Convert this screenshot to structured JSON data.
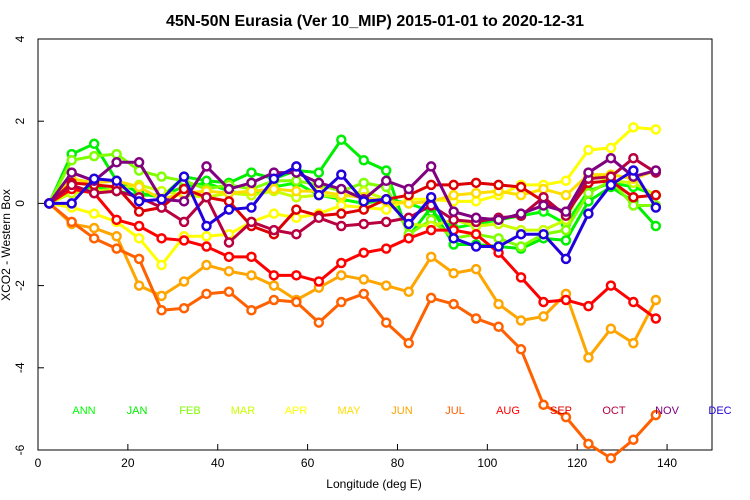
{
  "chart_data": {
    "type": "line",
    "title": "45N-50N Eurasia (Ver 10_MIP)   2015-01-01 to 2020-12-31",
    "xlabel": "Longitude (deg E)",
    "ylabel": "XCO2 - Western Box",
    "xlim": [
      0,
      150
    ],
    "ylim": [
      -6,
      4
    ],
    "xticks": [
      0,
      20,
      40,
      60,
      80,
      100,
      120,
      140
    ],
    "yticks": [
      -6,
      -4,
      -2,
      0,
      2,
      4
    ],
    "x": [
      2.5,
      7.5,
      12.5,
      17.5,
      22.5,
      27.5,
      32.5,
      37.5,
      42.5,
      47.5,
      52.5,
      57.5,
      62.5,
      67.5,
      72.5,
      77.5,
      82.5,
      87.5,
      92.5,
      97.5,
      102.5,
      107.5,
      112.5,
      117.5,
      122.5,
      127.5,
      132.5,
      137.5
    ],
    "series": [
      {
        "name": "ANN",
        "color": "#00ff00",
        "values": [
          0,
          0.3,
          0.4,
          0.3,
          0.2,
          0.2,
          0.4,
          0.5,
          0.3,
          0.2,
          0.4,
          0.5,
          0.2,
          0.1,
          0,
          0.1,
          0,
          -0.2,
          -0.6,
          -0.5,
          -0.4,
          -0.3,
          -0.2,
          -0.5,
          0.3,
          0.5,
          0.4,
          0.2
        ]
      },
      {
        "name": "JAN",
        "color": "#00ee00",
        "values": [
          0,
          1.2,
          1.45,
          0.55,
          0.25,
          0.15,
          0.65,
          0.55,
          0.5,
          0.75,
          0.6,
          0.8,
          0.75,
          1.55,
          1.05,
          0.8,
          -0.8,
          -0.1,
          -1,
          -1,
          -1.05,
          -1.1,
          -0.85,
          -0.9,
          0.05,
          0.4,
          0.05,
          -0.55
        ]
      },
      {
        "name": "FEB",
        "color": "#7fff00",
        "values": [
          0,
          1.05,
          1.15,
          1.2,
          0.8,
          0.65,
          0.55,
          0.35,
          0.45,
          0.35,
          0.55,
          0.55,
          0.45,
          0.3,
          0.5,
          0.4,
          -0.75,
          -0.4,
          -0.85,
          -0.75,
          -0.85,
          -1.05,
          -0.75,
          -0.65,
          0.25,
          0.55,
          -0.05,
          -0.05
        ]
      },
      {
        "name": "MAR",
        "color": "#c8ff00",
        "values": [
          0,
          0.25,
          0.3,
          0.35,
          0.45,
          0.3,
          0.2,
          0.15,
          0.25,
          0.2,
          0.3,
          0.15,
          0.2,
          0.15,
          0.3,
          0.1,
          -0.5,
          -0.55,
          -0.4,
          -0.55,
          -0.5,
          -0.65,
          -0.65,
          -0.4,
          0.7,
          0.55,
          0.5,
          0.2
        ]
      },
      {
        "name": "APR",
        "color": "#ffff00",
        "values": [
          0,
          -0.1,
          -0.25,
          -0.45,
          -0.85,
          -1.5,
          -0.8,
          -0.8,
          -0.75,
          -0.45,
          -0.25,
          -0.35,
          -0.25,
          -0.05,
          -0.1,
          -0.15,
          0.1,
          0.1,
          0.05,
          0.05,
          0.2,
          0.45,
          0.45,
          0.55,
          1.3,
          1.35,
          1.85,
          1.8
        ]
      },
      {
        "name": "MAY",
        "color": "#ffdd00",
        "values": [
          0,
          0.6,
          0.5,
          0.55,
          0.4,
          0.1,
          0.25,
          0.3,
          0.25,
          0.3,
          0.35,
          0.3,
          0.3,
          0.2,
          0.15,
          0.05,
          0,
          0.05,
          0.2,
          0.25,
          0.3,
          0.2,
          0.35,
          0.2,
          0.7,
          0.7,
          0.6,
          0.8
        ]
      },
      {
        "name": "JUN",
        "color": "#ffa500",
        "values": [
          0,
          -0.5,
          -0.6,
          -0.8,
          -2,
          -2.25,
          -1.9,
          -1.5,
          -1.65,
          -1.75,
          -2,
          -2.35,
          -2.05,
          -1.75,
          -1.85,
          -2,
          -2.15,
          -1.3,
          -1.7,
          -1.6,
          -2.45,
          -2.85,
          -2.75,
          -2.2,
          -3.75,
          -3.05,
          -3.4,
          -2.35
        ]
      },
      {
        "name": "JUL",
        "color": "#ff6000",
        "values": [
          0,
          -0.45,
          -0.85,
          -1.1,
          -1.35,
          -2.6,
          -2.55,
          -2.2,
          -2.15,
          -2.6,
          -2.35,
          -2.4,
          -2.9,
          -2.4,
          -2.2,
          -2.9,
          -3.4,
          -2.3,
          -2.45,
          -2.8,
          -3,
          -3.55,
          -4.9,
          -5.2,
          -5.85,
          -6.2,
          -5.75,
          -5.15
        ]
      },
      {
        "name": "AUG",
        "color": "#ff0000",
        "values": [
          0,
          0.35,
          0.25,
          -0.4,
          -0.55,
          -0.85,
          -0.9,
          -1.05,
          -1.3,
          -1.3,
          -1.75,
          -1.75,
          -1.9,
          -1.45,
          -1.2,
          -1.1,
          -0.85,
          -0.65,
          -0.65,
          -0.75,
          -1.2,
          -1.8,
          -2.4,
          -2.35,
          -2.5,
          -2,
          -2.4,
          -2.8
        ]
      },
      {
        "name": "SEP",
        "color": "#dd0000",
        "values": [
          0,
          0.5,
          0.45,
          0.4,
          -0.2,
          -0.1,
          0.35,
          0.15,
          0.05,
          -0.55,
          -0.75,
          -0.15,
          -0.3,
          -0.25,
          -0.15,
          0.1,
          0.2,
          0.45,
          0.45,
          0.5,
          0.45,
          0.4,
          0.05,
          -0.25,
          0.5,
          0.55,
          0.15,
          0.2
        ]
      },
      {
        "name": "OCT",
        "color": "#b80040",
        "values": [
          0,
          0.45,
          0.25,
          0.3,
          0.15,
          -0.1,
          -0.45,
          0.15,
          -0.95,
          -0.45,
          -0.65,
          -0.75,
          -0.35,
          -0.55,
          -0.5,
          -0.45,
          -0.35,
          -0.05,
          -0.4,
          -0.45,
          -0.35,
          -0.3,
          0.15,
          -0.3,
          0.6,
          0.65,
          1.1,
          0.75
        ]
      },
      {
        "name": "NOV",
        "color": "#800080",
        "values": [
          0,
          0.75,
          0.55,
          1,
          1,
          0.1,
          0.05,
          0.9,
          0.35,
          0.5,
          0.75,
          0.75,
          0.5,
          0.35,
          0.1,
          0.55,
          0.35,
          0.9,
          -0.2,
          -0.35,
          -0.4,
          -0.25,
          -0.05,
          -0.2,
          0.75,
          1.1,
          0.65,
          0.8
        ]
      },
      {
        "name": "DEC",
        "color": "#2000dd",
        "values": [
          0,
          0,
          0.6,
          0.55,
          0.05,
          0.1,
          0.65,
          -0.55,
          -0.15,
          -0.1,
          0.6,
          0.9,
          0.2,
          0.7,
          0.05,
          0.1,
          -0.5,
          0.15,
          -0.85,
          -1.05,
          -1.05,
          -0.75,
          -0.75,
          -1.35,
          -0.25,
          0.45,
          0.8,
          -0.1
        ]
      }
    ],
    "legend": "bottom"
  }
}
